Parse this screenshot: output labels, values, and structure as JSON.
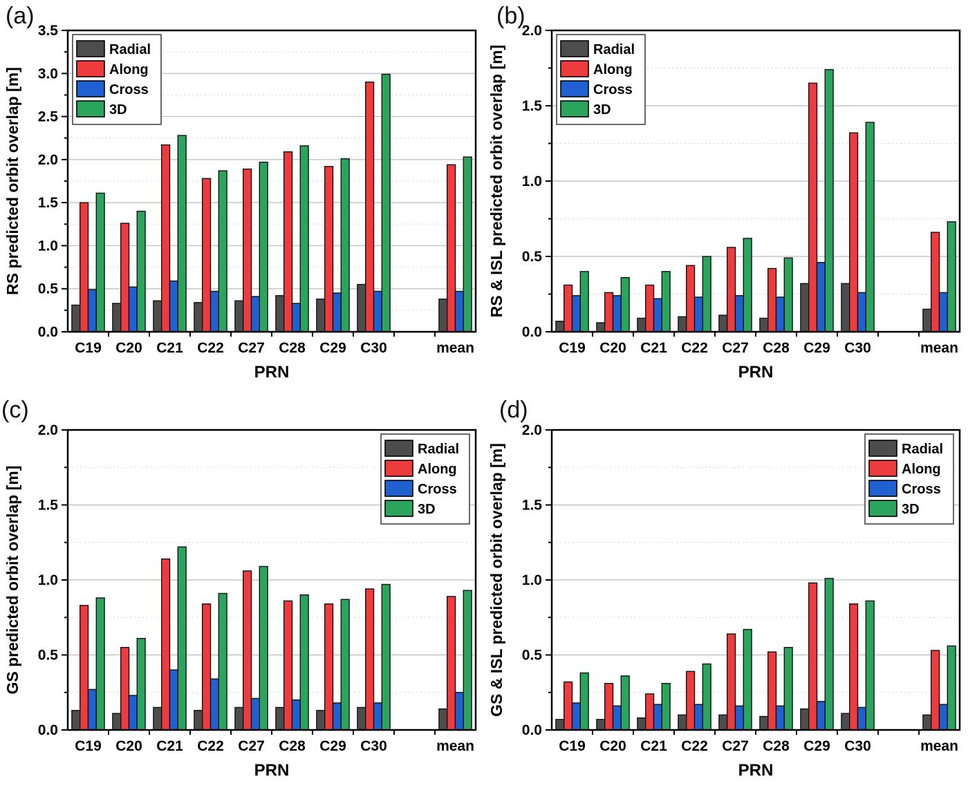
{
  "figure": {
    "kind": "2x2 grouped bar chart figure",
    "panel_labels": [
      "(a)",
      "(b)",
      "(c)",
      "(d)"
    ]
  },
  "colors": {
    "radial": "#4d4d4d",
    "along": "#ee3b3e",
    "cross": "#2060d0",
    "three_d": "#2ba55e",
    "bar_outline": "#111111",
    "major_grid": "#bbbbbb",
    "minor_grid": "#d4d4d4",
    "frame": "#000000"
  },
  "chart_data": [
    {
      "panel_label": "(a)",
      "type": "bar",
      "xlabel": "PRN",
      "ylabel": "RS predicted orbit overlap [m]",
      "ylim": [
        0,
        3.5
      ],
      "ytick_step": 0.5,
      "yminor_step": 0.25,
      "grid": "major-solid-minor-dotted",
      "legend_position": "top-left",
      "gap_before_last": true,
      "categories": [
        "C19",
        "C20",
        "C21",
        "C22",
        "C27",
        "C28",
        "C29",
        "C30",
        "mean"
      ],
      "series": [
        {
          "name": "Radial",
          "color": "#4d4d4d",
          "values": [
            0.31,
            0.33,
            0.36,
            0.34,
            0.36,
            0.42,
            0.38,
            0.55,
            0.38
          ]
        },
        {
          "name": "Along",
          "color": "#ee3b3e",
          "values": [
            1.5,
            1.26,
            2.17,
            1.78,
            1.89,
            2.09,
            1.92,
            2.9,
            1.94
          ]
        },
        {
          "name": "Cross",
          "color": "#2060d0",
          "values": [
            0.49,
            0.52,
            0.59,
            0.47,
            0.41,
            0.33,
            0.45,
            0.47,
            0.47
          ]
        },
        {
          "name": "3D",
          "color": "#2ba55e",
          "values": [
            1.61,
            1.4,
            2.28,
            1.87,
            1.97,
            2.16,
            2.01,
            2.99,
            2.03
          ]
        }
      ]
    },
    {
      "panel_label": "(b)",
      "type": "bar",
      "xlabel": "PRN",
      "ylabel": "RS & ISL predicted orbit overlap [m]",
      "ylim": [
        0,
        2.0
      ],
      "ytick_step": 0.5,
      "yminor_step": 0.25,
      "grid": "major-solid-minor-dotted",
      "legend_position": "top-left",
      "gap_before_last": true,
      "categories": [
        "C19",
        "C20",
        "C21",
        "C22",
        "C27",
        "C28",
        "C29",
        "C30",
        "mean"
      ],
      "series": [
        {
          "name": "Radial",
          "color": "#4d4d4d",
          "values": [
            0.07,
            0.06,
            0.09,
            0.1,
            0.11,
            0.09,
            0.32,
            0.32,
            0.15
          ]
        },
        {
          "name": "Along",
          "color": "#ee3b3e",
          "values": [
            0.31,
            0.26,
            0.31,
            0.44,
            0.56,
            0.42,
            1.65,
            1.32,
            0.66
          ]
        },
        {
          "name": "Cross",
          "color": "#2060d0",
          "values": [
            0.24,
            0.24,
            0.22,
            0.23,
            0.24,
            0.23,
            0.46,
            0.26,
            0.26
          ]
        },
        {
          "name": "3D",
          "color": "#2ba55e",
          "values": [
            0.4,
            0.36,
            0.4,
            0.5,
            0.62,
            0.49,
            1.74,
            1.39,
            0.73
          ]
        }
      ]
    },
    {
      "panel_label": "(c)",
      "type": "bar",
      "xlabel": "PRN",
      "ylabel": "GS predicted orbit overlap [m]",
      "ylim": [
        0,
        2.0
      ],
      "ytick_step": 0.5,
      "yminor_step": 0.25,
      "grid": "major-solid-minor-dotted",
      "legend_position": "top-right",
      "gap_before_last": true,
      "categories": [
        "C19",
        "C20",
        "C21",
        "C22",
        "C27",
        "C28",
        "C29",
        "C30",
        "mean"
      ],
      "series": [
        {
          "name": "Radial",
          "color": "#4d4d4d",
          "values": [
            0.13,
            0.11,
            0.15,
            0.13,
            0.15,
            0.15,
            0.13,
            0.15,
            0.14
          ]
        },
        {
          "name": "Along",
          "color": "#ee3b3e",
          "values": [
            0.83,
            0.55,
            1.14,
            0.84,
            1.06,
            0.86,
            0.84,
            0.94,
            0.89
          ]
        },
        {
          "name": "Cross",
          "color": "#2060d0",
          "values": [
            0.27,
            0.23,
            0.4,
            0.34,
            0.21,
            0.2,
            0.18,
            0.18,
            0.25
          ]
        },
        {
          "name": "3D",
          "color": "#2ba55e",
          "values": [
            0.88,
            0.61,
            1.22,
            0.91,
            1.09,
            0.9,
            0.87,
            0.97,
            0.93
          ]
        }
      ]
    },
    {
      "panel_label": "(d)",
      "type": "bar",
      "xlabel": "PRN",
      "ylabel": "GS & ISL  predicted orbit overlap [m]",
      "ylim": [
        0,
        2.0
      ],
      "ytick_step": 0.5,
      "yminor_step": 0.25,
      "grid": "major-solid-minor-dotted",
      "legend_position": "top-right",
      "gap_before_last": true,
      "categories": [
        "C19",
        "C20",
        "C21",
        "C22",
        "C27",
        "C28",
        "C29",
        "C30",
        "mean"
      ],
      "series": [
        {
          "name": "Radial",
          "color": "#4d4d4d",
          "values": [
            0.07,
            0.07,
            0.08,
            0.1,
            0.1,
            0.09,
            0.14,
            0.11,
            0.1
          ]
        },
        {
          "name": "Along",
          "color": "#ee3b3e",
          "values": [
            0.32,
            0.31,
            0.24,
            0.39,
            0.64,
            0.52,
            0.98,
            0.84,
            0.53
          ]
        },
        {
          "name": "Cross",
          "color": "#2060d0",
          "values": [
            0.18,
            0.16,
            0.17,
            0.17,
            0.16,
            0.16,
            0.19,
            0.15,
            0.17
          ]
        },
        {
          "name": "3D",
          "color": "#2ba55e",
          "values": [
            0.38,
            0.36,
            0.31,
            0.44,
            0.67,
            0.55,
            1.01,
            0.86,
            0.56
          ]
        }
      ]
    }
  ]
}
